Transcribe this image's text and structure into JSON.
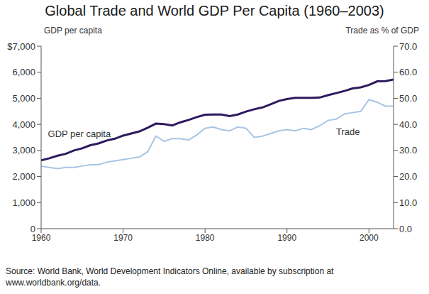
{
  "chart_data": {
    "type": "line",
    "title": "Global Trade and World GDP Per Capita (1960–2003)",
    "y_label": "GDP per capita",
    "y2_label": "Trade as % of GDP",
    "source": "Source: World Bank, World Development Indicators Online, available by subscription at www.worldbank.org/data.",
    "x": [
      1960,
      1961,
      1962,
      1963,
      1964,
      1965,
      1966,
      1967,
      1968,
      1969,
      1970,
      1971,
      1972,
      1973,
      1974,
      1975,
      1976,
      1977,
      1978,
      1979,
      1980,
      1981,
      1982,
      1983,
      1984,
      1985,
      1986,
      1987,
      1988,
      1989,
      1990,
      1991,
      1992,
      1993,
      1994,
      1995,
      1996,
      1997,
      1998,
      1999,
      2000,
      2001,
      2002,
      2003
    ],
    "series": [
      {
        "name": "GDP per capita",
        "color": "#2e1a5e",
        "values": [
          2620,
          2700,
          2800,
          2870,
          3000,
          3080,
          3200,
          3270,
          3380,
          3450,
          3570,
          3650,
          3730,
          3870,
          4030,
          4010,
          3960,
          4080,
          4170,
          4280,
          4370,
          4380,
          4380,
          4320,
          4380,
          4490,
          4580,
          4650,
          4770,
          4900,
          4970,
          5020,
          5020,
          5020,
          5030,
          5120,
          5200,
          5280,
          5380,
          5420,
          5510,
          5650,
          5660,
          5720
        ]
      },
      {
        "name": "Trade",
        "color": "#a9c4e4",
        "axis": "y2",
        "values": [
          24,
          23.5,
          23,
          23.5,
          23.5,
          24,
          24.5,
          24.5,
          25.5,
          26,
          26.5,
          27,
          27.5,
          29.5,
          35.5,
          33.5,
          34.5,
          34.5,
          34,
          36,
          38.5,
          39,
          38,
          37.5,
          39,
          38.5,
          35,
          35.5,
          36.5,
          37.5,
          38,
          37.5,
          38.5,
          38,
          39.5,
          41.5,
          42,
          44,
          44.5,
          45,
          49.5,
          48.5,
          47,
          47
        ]
      }
    ],
    "xlim": [
      1960,
      2003
    ],
    "xticks": [
      1960,
      1970,
      1980,
      1990,
      2000
    ],
    "ylim": [
      0,
      7000
    ],
    "yticks": [
      {
        "value": 0,
        "label": "0"
      },
      {
        "value": 1000,
        "label": "1,000"
      },
      {
        "value": 2000,
        "label": "2,000"
      },
      {
        "value": 3000,
        "label": "3,000"
      },
      {
        "value": 4000,
        "label": "4,000"
      },
      {
        "value": 5000,
        "label": "5,000"
      },
      {
        "value": 6000,
        "label": "6,000"
      },
      {
        "value": 7000,
        "label": "$7,000"
      }
    ],
    "y2lim": [
      0,
      70
    ],
    "y2ticks": [
      {
        "value": 0,
        "label": "0.0"
      },
      {
        "value": 10,
        "label": "10.0"
      },
      {
        "value": 20,
        "label": "20.0"
      },
      {
        "value": 30,
        "label": "30.0"
      },
      {
        "value": 40,
        "label": "40.0"
      },
      {
        "value": 50,
        "label": "50.0"
      },
      {
        "value": 60,
        "label": "60.0"
      },
      {
        "value": 70,
        "label": "70.0"
      }
    ],
    "grid": false
  }
}
